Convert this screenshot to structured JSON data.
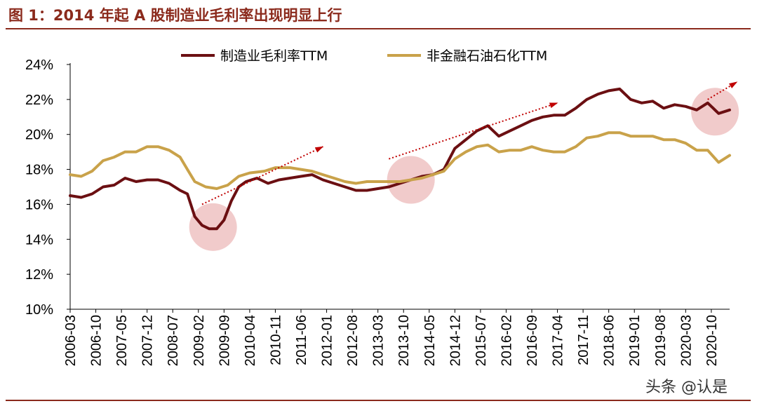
{
  "figure_title": "图 1：2014 年起 A 股制造业毛利率出现明显上行",
  "watermark": "头条 @认是",
  "chart_data": {
    "type": "line",
    "title": "",
    "xlabel": "",
    "ylabel": "",
    "ylim": [
      0.1,
      0.24
    ],
    "y_ticks": [
      "10%",
      "12%",
      "14%",
      "16%",
      "18%",
      "20%",
      "22%",
      "24%"
    ],
    "x_start": "2006-03",
    "x_end": "2021-03",
    "x_tick_labels": [
      "2006-03",
      "2006-10",
      "2007-05",
      "2007-12",
      "2008-07",
      "2009-02",
      "2009-09",
      "2010-04",
      "2010-11",
      "2011-06",
      "2012-01",
      "2012-08",
      "2013-03",
      "2013-10",
      "2014-05",
      "2014-12",
      "2015-07",
      "2016-02",
      "2016-09",
      "2017-04",
      "2017-11",
      "2018-06",
      "2019-01",
      "2019-08",
      "2020-03",
      "2020-10"
    ],
    "legend_position": "top",
    "grid": false,
    "series": [
      {
        "name": "制造业毛利率TTM",
        "color": "#6B0F12",
        "points": [
          [
            "2006-03",
            0.165
          ],
          [
            "2006-06",
            0.164
          ],
          [
            "2006-09",
            0.166
          ],
          [
            "2006-12",
            0.17
          ],
          [
            "2007-03",
            0.171
          ],
          [
            "2007-06",
            0.175
          ],
          [
            "2007-09",
            0.173
          ],
          [
            "2007-12",
            0.174
          ],
          [
            "2008-03",
            0.174
          ],
          [
            "2008-06",
            0.172
          ],
          [
            "2008-09",
            0.168
          ],
          [
            "2008-11",
            0.166
          ],
          [
            "2009-01",
            0.153
          ],
          [
            "2009-03",
            0.148
          ],
          [
            "2009-05",
            0.146
          ],
          [
            "2009-07",
            0.146
          ],
          [
            "2009-09",
            0.151
          ],
          [
            "2009-11",
            0.162
          ],
          [
            "2010-01",
            0.17
          ],
          [
            "2010-03",
            0.173
          ],
          [
            "2010-06",
            0.175
          ],
          [
            "2010-09",
            0.172
          ],
          [
            "2010-12",
            0.174
          ],
          [
            "2011-03",
            0.175
          ],
          [
            "2011-06",
            0.176
          ],
          [
            "2011-09",
            0.177
          ],
          [
            "2011-12",
            0.174
          ],
          [
            "2012-03",
            0.172
          ],
          [
            "2012-06",
            0.17
          ],
          [
            "2012-09",
            0.168
          ],
          [
            "2012-12",
            0.168
          ],
          [
            "2013-03",
            0.169
          ],
          [
            "2013-06",
            0.17
          ],
          [
            "2013-09",
            0.172
          ],
          [
            "2013-12",
            0.174
          ],
          [
            "2014-03",
            0.176
          ],
          [
            "2014-06",
            0.177
          ],
          [
            "2014-09",
            0.18
          ],
          [
            "2014-12",
            0.192
          ],
          [
            "2015-03",
            0.197
          ],
          [
            "2015-06",
            0.202
          ],
          [
            "2015-09",
            0.205
          ],
          [
            "2015-12",
            0.199
          ],
          [
            "2016-03",
            0.202
          ],
          [
            "2016-06",
            0.205
          ],
          [
            "2016-09",
            0.208
          ],
          [
            "2016-12",
            0.21
          ],
          [
            "2017-03",
            0.211
          ],
          [
            "2017-06",
            0.211
          ],
          [
            "2017-09",
            0.215
          ],
          [
            "2017-12",
            0.22
          ],
          [
            "2018-03",
            0.223
          ],
          [
            "2018-06",
            0.225
          ],
          [
            "2018-09",
            0.226
          ],
          [
            "2018-12",
            0.22
          ],
          [
            "2019-03",
            0.218
          ],
          [
            "2019-06",
            0.219
          ],
          [
            "2019-09",
            0.215
          ],
          [
            "2019-12",
            0.217
          ],
          [
            "2020-03",
            0.216
          ],
          [
            "2020-06",
            0.214
          ],
          [
            "2020-09",
            0.218
          ],
          [
            "2020-12",
            0.212
          ],
          [
            "2021-03",
            0.214
          ]
        ]
      },
      {
        "name": "非金融石油石化TTM",
        "color": "#C9A24A",
        "points": [
          [
            "2006-03",
            0.177
          ],
          [
            "2006-06",
            0.176
          ],
          [
            "2006-09",
            0.179
          ],
          [
            "2006-12",
            0.185
          ],
          [
            "2007-03",
            0.187
          ],
          [
            "2007-06",
            0.19
          ],
          [
            "2007-09",
            0.19
          ],
          [
            "2007-12",
            0.193
          ],
          [
            "2008-03",
            0.193
          ],
          [
            "2008-06",
            0.191
          ],
          [
            "2008-09",
            0.187
          ],
          [
            "2008-11",
            0.18
          ],
          [
            "2009-01",
            0.173
          ],
          [
            "2009-04",
            0.17
          ],
          [
            "2009-07",
            0.169
          ],
          [
            "2009-10",
            0.171
          ],
          [
            "2010-01",
            0.176
          ],
          [
            "2010-04",
            0.178
          ],
          [
            "2010-08",
            0.179
          ],
          [
            "2010-11",
            0.181
          ],
          [
            "2011-03",
            0.181
          ],
          [
            "2011-06",
            0.18
          ],
          [
            "2011-09",
            0.179
          ],
          [
            "2011-12",
            0.177
          ],
          [
            "2012-03",
            0.175
          ],
          [
            "2012-06",
            0.173
          ],
          [
            "2012-09",
            0.172
          ],
          [
            "2012-12",
            0.173
          ],
          [
            "2013-03",
            0.173
          ],
          [
            "2013-06",
            0.173
          ],
          [
            "2013-09",
            0.173
          ],
          [
            "2013-12",
            0.174
          ],
          [
            "2014-03",
            0.175
          ],
          [
            "2014-06",
            0.177
          ],
          [
            "2014-09",
            0.179
          ],
          [
            "2014-12",
            0.186
          ],
          [
            "2015-03",
            0.19
          ],
          [
            "2015-06",
            0.193
          ],
          [
            "2015-09",
            0.194
          ],
          [
            "2015-12",
            0.19
          ],
          [
            "2016-03",
            0.191
          ],
          [
            "2016-06",
            0.191
          ],
          [
            "2016-09",
            0.193
          ],
          [
            "2016-12",
            0.191
          ],
          [
            "2017-03",
            0.19
          ],
          [
            "2017-06",
            0.19
          ],
          [
            "2017-09",
            0.193
          ],
          [
            "2017-12",
            0.198
          ],
          [
            "2018-03",
            0.199
          ],
          [
            "2018-06",
            0.201
          ],
          [
            "2018-09",
            0.201
          ],
          [
            "2018-12",
            0.199
          ],
          [
            "2019-03",
            0.199
          ],
          [
            "2019-06",
            0.199
          ],
          [
            "2019-09",
            0.197
          ],
          [
            "2019-12",
            0.197
          ],
          [
            "2020-03",
            0.195
          ],
          [
            "2020-06",
            0.191
          ],
          [
            "2020-09",
            0.191
          ],
          [
            "2020-12",
            0.184
          ],
          [
            "2021-03",
            0.188
          ]
        ]
      }
    ],
    "highlight_circles": [
      {
        "x": "2009-06",
        "y": 0.147
      },
      {
        "x": "2013-12",
        "y": 0.174
      },
      {
        "x": "2020-11",
        "y": 0.213
      }
    ],
    "trend_arrows": [
      {
        "from": [
          "2009-03",
          0.16
        ],
        "to": [
          "2011-12",
          0.193
        ]
      },
      {
        "from": [
          "2013-06",
          0.186
        ],
        "to": [
          "2017-04",
          0.218
        ]
      },
      {
        "from": [
          "2020-09",
          0.22
        ],
        "to": [
          "2021-05",
          0.23
        ]
      }
    ]
  }
}
